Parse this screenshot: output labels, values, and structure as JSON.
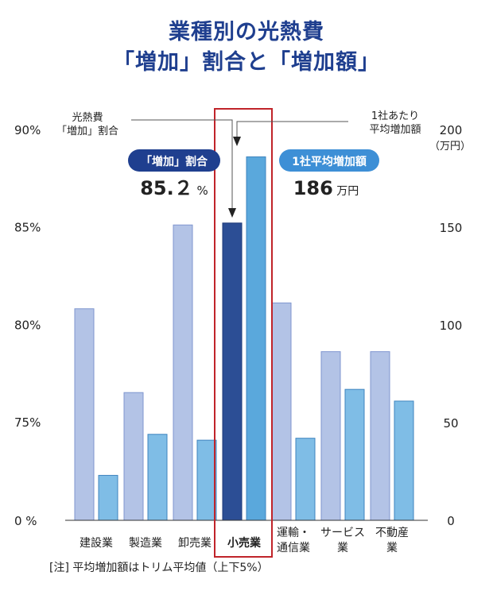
{
  "header": {
    "title_line1": "業種別の光熱費",
    "title_line2": "「増加」割合と「増加額」"
  },
  "footnote": "[注]  平均増加額はトリム平均値（上下5%）",
  "legend_left": [
    "光熱費",
    "「増加」割合"
  ],
  "legend_right": [
    "1社あたり",
    "平均増加額"
  ],
  "callout_left": {
    "badge": "「増加」割合",
    "value": "85.２",
    "unit": "%"
  },
  "callout_right": {
    "badge": "1社平均増加額",
    "value": "186",
    "unit": "万円"
  },
  "colors": {
    "bar_ratio": "#b3c3e6",
    "bar_ratio_edge": "#7f96cf",
    "bar_amount": "#7fbde6",
    "bar_amount_edge": "#3f84bf",
    "highlight_ratio": "#2c4e95",
    "highlight_amount": "#5aa8dc",
    "highlight_box": "#c0242a",
    "badge_left": "#1f3f8f",
    "badge_right": "#3d8fd6"
  },
  "chart_data": {
    "type": "bar",
    "categories": [
      [
        "建設業"
      ],
      [
        "製造業"
      ],
      [
        "卸売業"
      ],
      [
        "小売業"
      ],
      [
        "運輸・",
        "通信業"
      ],
      [
        "サービス",
        "業"
      ],
      [
        "不動産",
        "業"
      ]
    ],
    "highlight_index": 3,
    "series": [
      {
        "name": "光熱費「増加」割合",
        "axis": "left",
        "values": [
          80.8,
          76.5,
          85.1,
          85.2,
          81.1,
          78.6,
          78.6
        ]
      },
      {
        "name": "1社あたり平均増加額",
        "axis": "right",
        "values": [
          23,
          44,
          41,
          186,
          42,
          67,
          61
        ]
      }
    ],
    "left_axis": {
      "ticks": [
        "0 %",
        "75%",
        "80%",
        "85%",
        "90%"
      ],
      "broken_scale": [
        0,
        75,
        90
      ]
    },
    "right_axis": {
      "ticks": [
        "0",
        "50",
        "100",
        "150",
        "200"
      ],
      "unit": "（万円）",
      "ylim": [
        0,
        200
      ]
    }
  }
}
